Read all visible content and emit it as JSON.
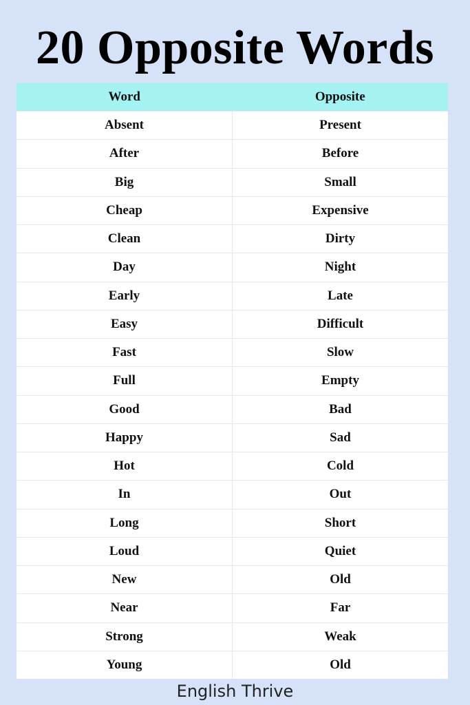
{
  "title": "20 Opposite Words",
  "table": {
    "headers": [
      "Word",
      "Opposite"
    ],
    "rows": [
      [
        "Absent",
        "Present"
      ],
      [
        "After",
        "Before"
      ],
      [
        "Big",
        "Small"
      ],
      [
        "Cheap",
        "Expensive"
      ],
      [
        "Clean",
        "Dirty"
      ],
      [
        "Day",
        "Night"
      ],
      [
        "Early",
        "Late"
      ],
      [
        "Easy",
        "Difficult"
      ],
      [
        "Fast",
        "Slow"
      ],
      [
        "Full",
        "Empty"
      ],
      [
        "Good",
        "Bad"
      ],
      [
        "Happy",
        "Sad"
      ],
      [
        "Hot",
        "Cold"
      ],
      [
        "In",
        "Out"
      ],
      [
        "Long",
        "Short"
      ],
      [
        "Loud",
        "Quiet"
      ],
      [
        "New",
        "Old"
      ],
      [
        "Near",
        "Far"
      ],
      [
        "Strong",
        "Weak"
      ],
      [
        "Young",
        "Old"
      ]
    ]
  },
  "footer": "English Thrive",
  "colors": {
    "background": "#d6e2f8",
    "header": "#a5f2f3"
  }
}
